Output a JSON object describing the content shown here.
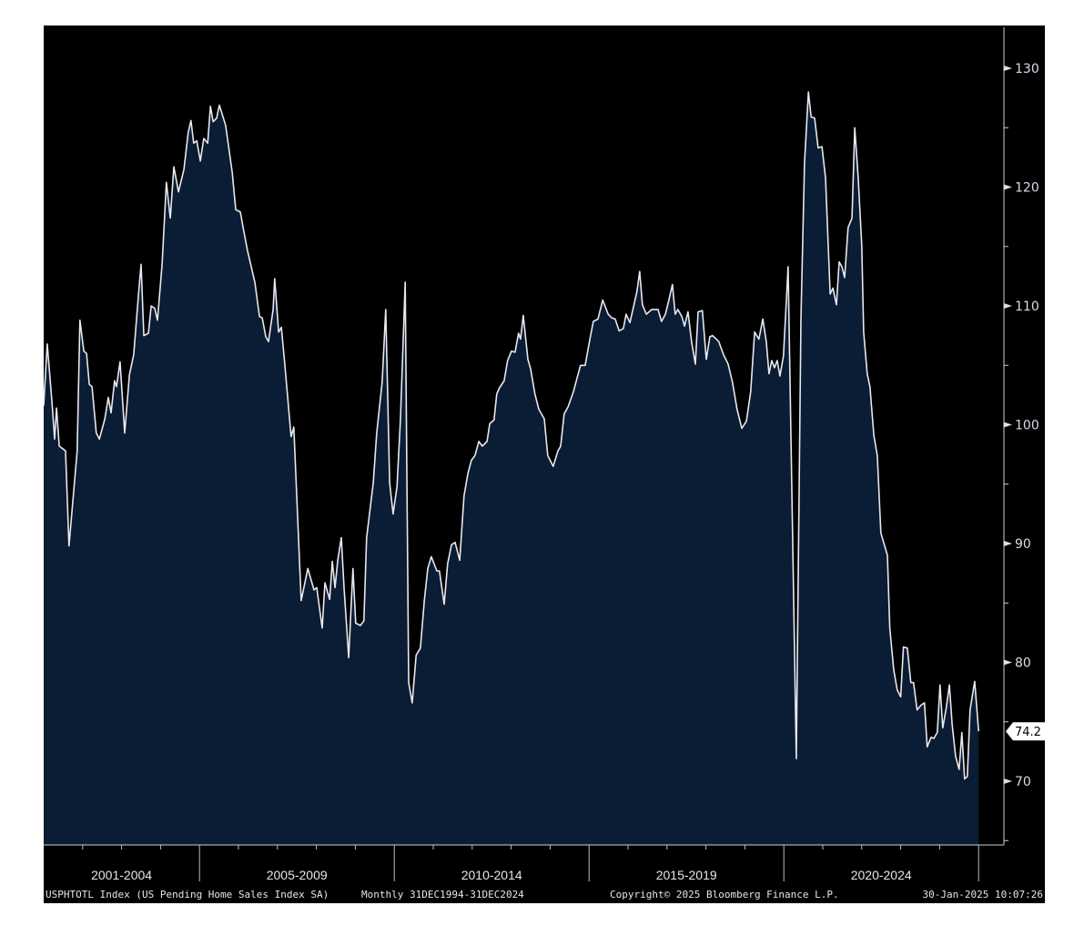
{
  "chart_data": {
    "type": "area",
    "title": "USPHTOTL Index (US Pending Home Sales Index SA)",
    "frequency": "Monthly",
    "x_unit": "decimal year",
    "xlim": [
      2001,
      2025
    ],
    "ylim": [
      65,
      133
    ],
    "yticks": [
      70,
      80,
      90,
      100,
      110,
      120,
      130
    ],
    "ytick_labels": [
      "70",
      "80",
      "90",
      "100",
      "110",
      "120",
      "130"
    ],
    "x_period_labels": [
      "2001-2004",
      "2005-2009",
      "2010-2014",
      "2015-2019",
      "2020-2024"
    ],
    "last_value": "74.2",
    "colors": {
      "fill": "#0b1c35",
      "line": "#e8e8ee",
      "background": "#000000",
      "last_label_bg": "#ffffff"
    },
    "grid": false,
    "points": [
      [
        2001.0,
        101.6
      ],
      [
        2001.09,
        106.8
      ],
      [
        2001.21,
        102
      ],
      [
        2001.28,
        98.8
      ],
      [
        2001.33,
        101.4
      ],
      [
        2001.4,
        98.2
      ],
      [
        2001.56,
        97.8
      ],
      [
        2001.65,
        89.8
      ],
      [
        2001.86,
        97.8
      ],
      [
        2001.93,
        108.8
      ],
      [
        2002.03,
        106.2
      ],
      [
        2002.1,
        106
      ],
      [
        2002.17,
        103.4
      ],
      [
        2002.24,
        103.2
      ],
      [
        2002.35,
        99.3
      ],
      [
        2002.43,
        98.8
      ],
      [
        2002.57,
        100.5
      ],
      [
        2002.66,
        102.3
      ],
      [
        2002.73,
        101
      ],
      [
        2002.82,
        103.7
      ],
      [
        2002.87,
        103.2
      ],
      [
        2002.96,
        105.3
      ],
      [
        2003.08,
        99.3
      ],
      [
        2003.2,
        104.2
      ],
      [
        2003.31,
        105.9
      ],
      [
        2003.43,
        110.8
      ],
      [
        2003.5,
        113.5
      ],
      [
        2003.57,
        107.5
      ],
      [
        2003.69,
        107.7
      ],
      [
        2003.76,
        110
      ],
      [
        2003.85,
        109.8
      ],
      [
        2003.92,
        108.8
      ],
      [
        2004.04,
        113.5
      ],
      [
        2004.15,
        120.4
      ],
      [
        2004.25,
        117.4
      ],
      [
        2004.34,
        121.7
      ],
      [
        2004.46,
        119.6
      ],
      [
        2004.6,
        121.5
      ],
      [
        2004.71,
        124.6
      ],
      [
        2004.78,
        125.6
      ],
      [
        2004.85,
        123.7
      ],
      [
        2004.93,
        123.9
      ],
      [
        2005.02,
        122.2
      ],
      [
        2005.11,
        124.1
      ],
      [
        2005.21,
        123.7
      ],
      [
        2005.28,
        126.8
      ],
      [
        2005.35,
        125.5
      ],
      [
        2005.44,
        125.8
      ],
      [
        2005.51,
        126.9
      ],
      [
        2005.67,
        125.2
      ],
      [
        2005.84,
        121.2
      ],
      [
        2005.93,
        118.1
      ],
      [
        2006.05,
        117.9
      ],
      [
        2006.12,
        116.6
      ],
      [
        2006.23,
        114.7
      ],
      [
        2006.42,
        112
      ],
      [
        2006.54,
        109.1
      ],
      [
        2006.61,
        109
      ],
      [
        2006.7,
        107.4
      ],
      [
        2006.77,
        107
      ],
      [
        2006.89,
        109.7
      ],
      [
        2006.93,
        112.3
      ],
      [
        2007.03,
        107.8
      ],
      [
        2007.1,
        108.2
      ],
      [
        2007.19,
        105.1
      ],
      [
        2007.35,
        99
      ],
      [
        2007.42,
        99.8
      ],
      [
        2007.61,
        85.2
      ],
      [
        2007.78,
        87.9
      ],
      [
        2007.94,
        86.1
      ],
      [
        2008.01,
        86.3
      ],
      [
        2008.15,
        82.9
      ],
      [
        2008.22,
        86.7
      ],
      [
        2008.34,
        85.3
      ],
      [
        2008.41,
        88.5
      ],
      [
        2008.48,
        86.3
      ],
      [
        2008.55,
        88.6
      ],
      [
        2008.64,
        90.5
      ],
      [
        2008.71,
        86.3
      ],
      [
        2008.83,
        80.4
      ],
      [
        2008.94,
        87.9
      ],
      [
        2009.01,
        83.3
      ],
      [
        2009.13,
        83.1
      ],
      [
        2009.22,
        83.5
      ],
      [
        2009.29,
        90.5
      ],
      [
        2009.46,
        95.1
      ],
      [
        2009.55,
        99.3
      ],
      [
        2009.69,
        103.6
      ],
      [
        2009.78,
        109.7
      ],
      [
        2009.88,
        95.1
      ],
      [
        2009.97,
        92.5
      ],
      [
        2010.07,
        94.8
      ],
      [
        2010.16,
        100.5
      ],
      [
        2010.28,
        112
      ],
      [
        2010.37,
        78.3
      ],
      [
        2010.46,
        76.6
      ],
      [
        2010.56,
        80.6
      ],
      [
        2010.67,
        81.2
      ],
      [
        2010.77,
        85.2
      ],
      [
        2010.86,
        87.9
      ],
      [
        2010.95,
        88.9
      ],
      [
        2011.09,
        87.7
      ],
      [
        2011.16,
        87.7
      ],
      [
        2011.28,
        84.9
      ],
      [
        2011.37,
        88.3
      ],
      [
        2011.47,
        89.9
      ],
      [
        2011.56,
        90.1
      ],
      [
        2011.68,
        88.6
      ],
      [
        2011.79,
        94
      ],
      [
        2011.89,
        95.9
      ],
      [
        2011.98,
        97
      ],
      [
        2012.07,
        97.4
      ],
      [
        2012.17,
        98.6
      ],
      [
        2012.26,
        98.2
      ],
      [
        2012.38,
        98.6
      ],
      [
        2012.45,
        100.1
      ],
      [
        2012.56,
        100.4
      ],
      [
        2012.63,
        102.6
      ],
      [
        2012.7,
        103.1
      ],
      [
        2012.82,
        103.7
      ],
      [
        2012.91,
        105.4
      ],
      [
        2013.01,
        106.2
      ],
      [
        2013.1,
        106.1
      ],
      [
        2013.19,
        107.7
      ],
      [
        2013.24,
        107.2
      ],
      [
        2013.31,
        109.2
      ],
      [
        2013.43,
        105.5
      ],
      [
        2013.5,
        104.7
      ],
      [
        2013.61,
        102.6
      ],
      [
        2013.71,
        101.3
      ],
      [
        2013.85,
        100.5
      ],
      [
        2013.94,
        97.4
      ],
      [
        2014.08,
        96.5
      ],
      [
        2014.2,
        97.8
      ],
      [
        2014.27,
        98.2
      ],
      [
        2014.36,
        100.9
      ],
      [
        2014.46,
        101.5
      ],
      [
        2014.6,
        102.8
      ],
      [
        2014.69,
        103.9
      ],
      [
        2014.78,
        105
      ],
      [
        2014.9,
        105
      ],
      [
        2015.02,
        107.2
      ],
      [
        2015.11,
        108.7
      ],
      [
        2015.23,
        108.9
      ],
      [
        2015.35,
        110.5
      ],
      [
        2015.49,
        109.3
      ],
      [
        2015.58,
        109
      ],
      [
        2015.67,
        108.9
      ],
      [
        2015.77,
        107.9
      ],
      [
        2015.88,
        108.1
      ],
      [
        2015.95,
        109.3
      ],
      [
        2016.05,
        108.6
      ],
      [
        2016.23,
        111.2
      ],
      [
        2016.3,
        112.9
      ],
      [
        2016.37,
        110.1
      ],
      [
        2016.47,
        109.3
      ],
      [
        2016.61,
        109.7
      ],
      [
        2016.77,
        109.7
      ],
      [
        2016.86,
        108.7
      ],
      [
        2016.96,
        109.3
      ],
      [
        2017.05,
        110.5
      ],
      [
        2017.14,
        111.8
      ],
      [
        2017.21,
        109.3
      ],
      [
        2017.28,
        109.7
      ],
      [
        2017.38,
        109.1
      ],
      [
        2017.45,
        108.3
      ],
      [
        2017.54,
        109.5
      ],
      [
        2017.63,
        107
      ],
      [
        2017.73,
        105.1
      ],
      [
        2017.8,
        109.5
      ],
      [
        2017.91,
        109.6
      ],
      [
        2018.01,
        105.5
      ],
      [
        2018.1,
        107.4
      ],
      [
        2018.17,
        107.5
      ],
      [
        2018.33,
        107
      ],
      [
        2018.45,
        105.9
      ],
      [
        2018.57,
        105.1
      ],
      [
        2018.68,
        103.6
      ],
      [
        2018.8,
        101.3
      ],
      [
        2018.92,
        99.7
      ],
      [
        2019.04,
        100.3
      ],
      [
        2019.15,
        102.8
      ],
      [
        2019.25,
        107.8
      ],
      [
        2019.36,
        107.2
      ],
      [
        2019.46,
        108.9
      ],
      [
        2019.55,
        107
      ],
      [
        2019.62,
        104.3
      ],
      [
        2019.69,
        105.4
      ],
      [
        2019.76,
        104.8
      ],
      [
        2019.83,
        105.4
      ],
      [
        2019.9,
        104.1
      ],
      [
        2019.99,
        105.8
      ],
      [
        2020.11,
        113.3
      ],
      [
        2020.32,
        71.9
      ],
      [
        2020.44,
        108.9
      ],
      [
        2020.53,
        122
      ],
      [
        2020.63,
        128
      ],
      [
        2020.7,
        125.9
      ],
      [
        2020.79,
        125.8
      ],
      [
        2020.88,
        123.3
      ],
      [
        2020.98,
        123.4
      ],
      [
        2021.07,
        120.8
      ],
      [
        2021.19,
        111
      ],
      [
        2021.26,
        111.5
      ],
      [
        2021.35,
        110.1
      ],
      [
        2021.42,
        113.7
      ],
      [
        2021.49,
        113.3
      ],
      [
        2021.56,
        112.4
      ],
      [
        2021.65,
        116.6
      ],
      [
        2021.75,
        117.4
      ],
      [
        2021.82,
        125
      ],
      [
        2021.91,
        120.8
      ],
      [
        2022.0,
        115.1
      ],
      [
        2022.05,
        107.8
      ],
      [
        2022.14,
        104.3
      ],
      [
        2022.21,
        103.2
      ],
      [
        2022.31,
        99.1
      ],
      [
        2022.4,
        97.4
      ],
      [
        2022.49,
        90.9
      ],
      [
        2022.66,
        89
      ],
      [
        2022.72,
        82.9
      ],
      [
        2022.82,
        79.4
      ],
      [
        2022.91,
        77.7
      ],
      [
        2023.0,
        77.1
      ],
      [
        2023.07,
        81.3
      ],
      [
        2023.17,
        81.2
      ],
      [
        2023.26,
        78.3
      ],
      [
        2023.33,
        78.3
      ],
      [
        2023.42,
        76
      ],
      [
        2023.52,
        76.4
      ],
      [
        2023.61,
        76.6
      ],
      [
        2023.68,
        72.9
      ],
      [
        2023.78,
        73.7
      ],
      [
        2023.85,
        73.6
      ],
      [
        2023.94,
        74.1
      ],
      [
        2024.01,
        78.1
      ],
      [
        2024.08,
        74.5
      ],
      [
        2024.17,
        76.2
      ],
      [
        2024.25,
        78.1
      ],
      [
        2024.32,
        74.8
      ],
      [
        2024.41,
        72.1
      ],
      [
        2024.5,
        71
      ],
      [
        2024.57,
        74.1
      ],
      [
        2024.64,
        70.2
      ],
      [
        2024.71,
        70.4
      ],
      [
        2024.78,
        76
      ],
      [
        2024.9,
        78.4
      ],
      [
        2025.0,
        74.2
      ]
    ]
  },
  "footer": {
    "ticker": "USPHTOTL Index (US Pending Home Sales Index SA)",
    "range": "Monthly 31DEC1994-31DEC2024",
    "copyright": "Copyright© 2025 Bloomberg Finance L.P.",
    "timestamp": "30-Jan-2025 10:07:26"
  }
}
